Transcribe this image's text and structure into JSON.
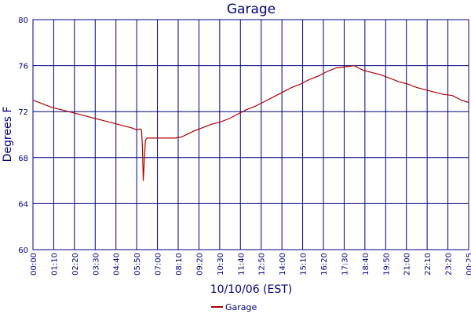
{
  "chart_data": {
    "type": "line",
    "title": "Garage",
    "xlabel": "10/10/06 (EST)",
    "ylabel": "Degrees F",
    "ylim": [
      60,
      80
    ],
    "yticks": [
      60,
      64,
      68,
      72,
      76,
      80
    ],
    "xticks": [
      "00:00",
      "01:10",
      "02:20",
      "03:30",
      "04:40",
      "05:50",
      "07:00",
      "08:10",
      "09:20",
      "10:30",
      "11:40",
      "12:50",
      "14:00",
      "15:10",
      "16:20",
      "17:30",
      "18:40",
      "19:50",
      "21:00",
      "22:10",
      "23:20",
      "00:25"
    ],
    "grid": true,
    "legend": "bottom-center",
    "colors": {
      "grid_vertical": "#000080",
      "grid_horizontal": "#000080",
      "text": "#000080",
      "series": "#b00000",
      "background": "#ffffff"
    },
    "series": [
      {
        "name": "Garage",
        "points": [
          [
            "00:00",
            73.0
          ],
          [
            "00:30",
            72.7
          ],
          [
            "01:00",
            72.4
          ],
          [
            "01:30",
            72.2
          ],
          [
            "02:00",
            72.0
          ],
          [
            "02:30",
            71.8
          ],
          [
            "03:00",
            71.6
          ],
          [
            "03:30",
            71.4
          ],
          [
            "04:00",
            71.2
          ],
          [
            "04:30",
            71.0
          ],
          [
            "05:00",
            70.8
          ],
          [
            "05:30",
            70.6
          ],
          [
            "05:50",
            70.4
          ],
          [
            "06:00",
            70.5
          ],
          [
            "06:05",
            70.4
          ],
          [
            "06:08",
            69.0
          ],
          [
            "06:11",
            66.0
          ],
          [
            "06:14",
            67.5
          ],
          [
            "06:18",
            69.5
          ],
          [
            "06:23",
            69.7
          ],
          [
            "07:00",
            69.7
          ],
          [
            "07:30",
            69.7
          ],
          [
            "08:00",
            69.7
          ],
          [
            "08:20",
            69.8
          ],
          [
            "09:00",
            70.3
          ],
          [
            "09:30",
            70.6
          ],
          [
            "10:00",
            70.9
          ],
          [
            "10:30",
            71.1
          ],
          [
            "11:00",
            71.4
          ],
          [
            "11:30",
            71.8
          ],
          [
            "12:00",
            72.2
          ],
          [
            "12:30",
            72.5
          ],
          [
            "13:00",
            72.9
          ],
          [
            "13:30",
            73.3
          ],
          [
            "14:00",
            73.7
          ],
          [
            "14:30",
            74.1
          ],
          [
            "15:00",
            74.4
          ],
          [
            "15:30",
            74.8
          ],
          [
            "16:00",
            75.1
          ],
          [
            "16:30",
            75.5
          ],
          [
            "17:00",
            75.8
          ],
          [
            "17:30",
            75.9
          ],
          [
            "18:00",
            76.0
          ],
          [
            "18:30",
            75.6
          ],
          [
            "19:00",
            75.4
          ],
          [
            "19:30",
            75.2
          ],
          [
            "20:00",
            74.9
          ],
          [
            "20:30",
            74.6
          ],
          [
            "21:00",
            74.4
          ],
          [
            "21:30",
            74.1
          ],
          [
            "22:00",
            73.9
          ],
          [
            "22:30",
            73.7
          ],
          [
            "23:00",
            73.5
          ],
          [
            "23:30",
            73.4
          ],
          [
            "24:00",
            73.0
          ],
          [
            "24:25",
            72.8
          ]
        ]
      }
    ]
  }
}
